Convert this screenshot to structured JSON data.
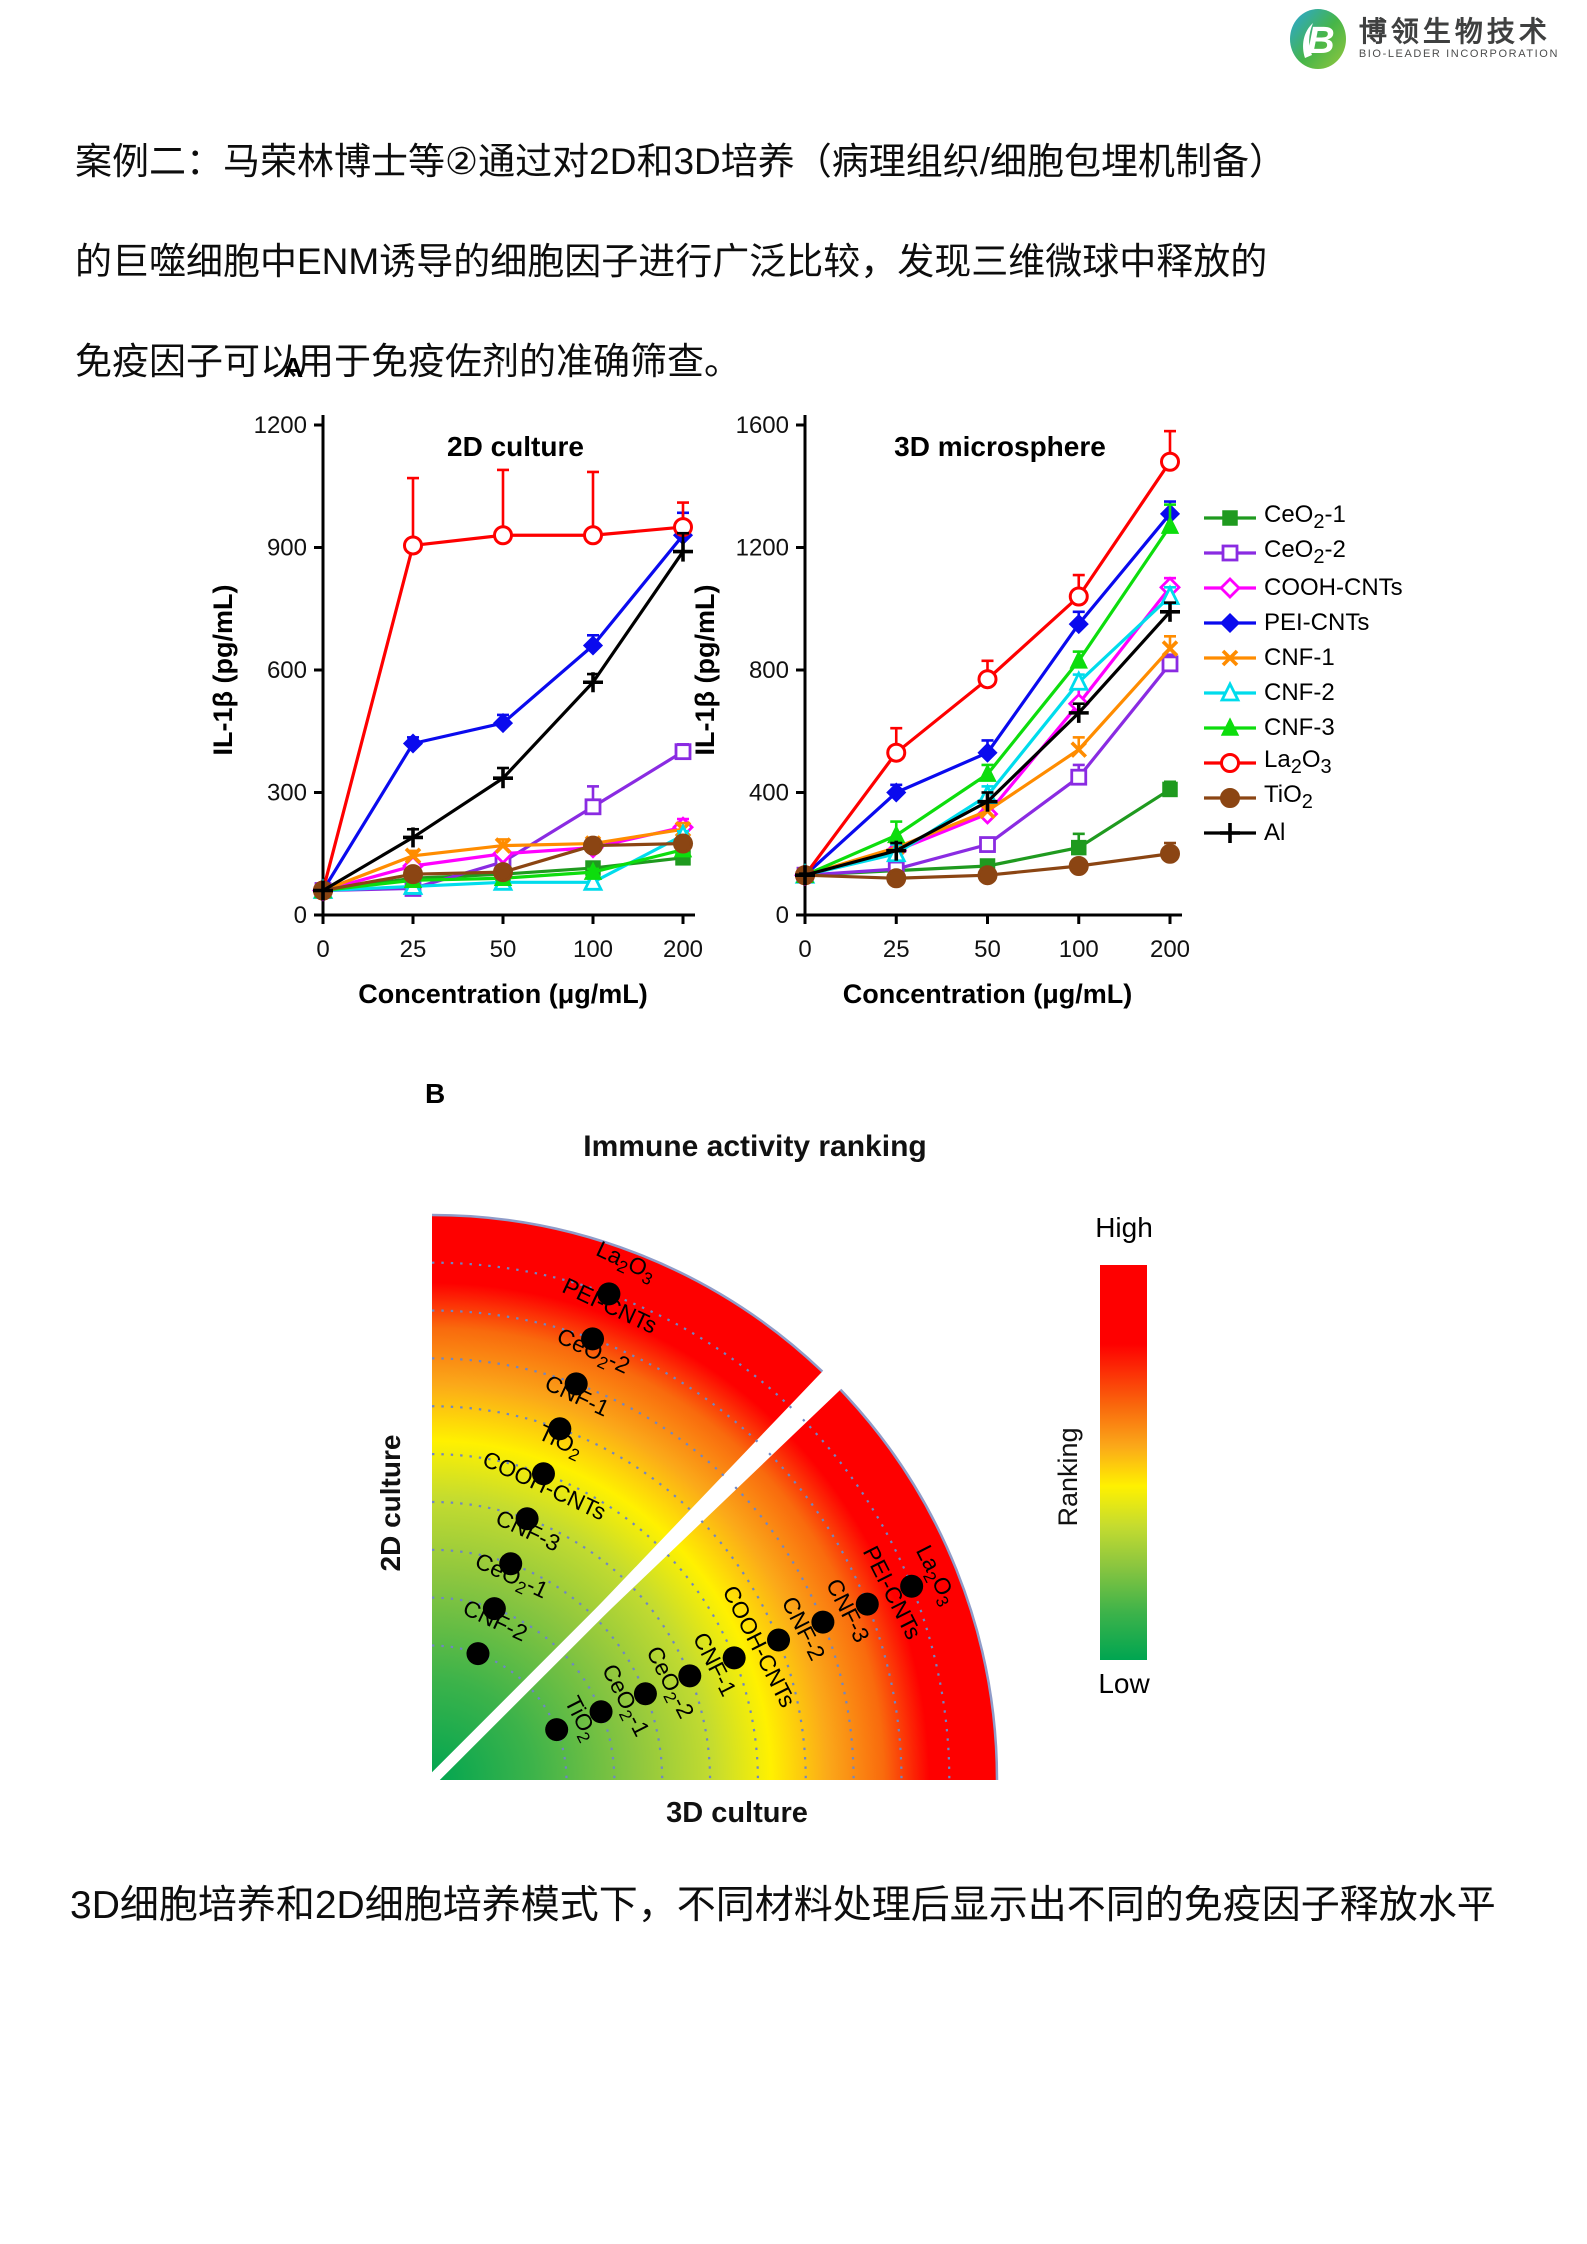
{
  "logo": {
    "name_cn": "博领生物技术",
    "name_en": "BIO-LEADER INCORPORATION",
    "mark_letter": "B",
    "color_blue": "#2aa6db",
    "color_green": "#46b549"
  },
  "intro": {
    "line1": "案例二：马荣林博士等②通过对2D和3D培养（病理组织/细胞包埋机制备）",
    "line2": "的巨噬细胞中ENM诱导的细胞因子进行广泛比较，发现三维微球中释放的",
    "line3": "免疫因子可以用于免疫佐剂的准确筛查。"
  },
  "panel_a_label": "A",
  "panel_b_label": "B",
  "caption_bottom": "3D细胞培养和2D细胞培养模式下，不同材料处理后显示出不同的免疫因子释放水平",
  "chart_data": [
    {
      "type": "line",
      "panel": "A",
      "title": "2D culture",
      "xlabel": "Concentration (μg/mL)",
      "ylabel": "IL-1β (pg/mL)",
      "x_categories": [
        "0",
        "25",
        "50",
        "100",
        "200"
      ],
      "ylim": [
        0,
        1200
      ],
      "yticks": [
        0,
        300,
        600,
        900,
        1200
      ],
      "grid": false,
      "legend_position": "right-of-second-chart",
      "series": [
        {
          "name": "CeO_2_-1",
          "color": "#1f9a1f",
          "marker": "square",
          "filled": true,
          "values": [
            60,
            90,
            100,
            115,
            140
          ],
          "err": [
            0,
            6,
            6,
            8,
            10
          ]
        },
        {
          "name": "CeO_2_-2",
          "color": "#8a2be2",
          "marker": "square",
          "filled": false,
          "values": [
            60,
            65,
            130,
            265,
            400
          ],
          "err": [
            0,
            8,
            12,
            50,
            18
          ]
        },
        {
          "name": "COOH-CNTs",
          "color": "#ff00ff",
          "marker": "diamond",
          "filled": false,
          "values": [
            60,
            120,
            150,
            165,
            215
          ],
          "err": [
            0,
            10,
            10,
            12,
            20
          ]
        },
        {
          "name": "PEI-CNTs",
          "color": "#0a0aee",
          "marker": "diamond",
          "filled": true,
          "values": [
            60,
            420,
            470,
            660,
            930
          ],
          "err": [
            0,
            15,
            20,
            25,
            55
          ]
        },
        {
          "name": "CNF-1",
          "color": "#ff8c00",
          "marker": "x",
          "filled": true,
          "values": [
            60,
            145,
            170,
            175,
            210
          ],
          "err": [
            0,
            12,
            15,
            10,
            15
          ]
        },
        {
          "name": "CNF-2",
          "color": "#00dcec",
          "marker": "triangle",
          "filled": false,
          "values": [
            60,
            70,
            80,
            80,
            195
          ],
          "err": [
            0,
            6,
            6,
            8,
            10
          ]
        },
        {
          "name": "CNF-3",
          "color": "#0ddd0d",
          "marker": "triangle",
          "filled": true,
          "values": [
            60,
            85,
            90,
            105,
            160
          ],
          "err": [
            0,
            6,
            6,
            8,
            10
          ]
        },
        {
          "name": "La_2_O_3",
          "color": "#fe0000",
          "marker": "circle",
          "filled": false,
          "values": [
            60,
            905,
            930,
            930,
            950
          ],
          "err": [
            0,
            165,
            160,
            155,
            60
          ]
        },
        {
          "name": "TiO_2_",
          "color": "#8b4513",
          "marker": "circle",
          "filled": true,
          "values": [
            60,
            100,
            105,
            170,
            175
          ],
          "err": [
            0,
            8,
            8,
            10,
            12
          ]
        },
        {
          "name": "Al",
          "color": "#000000",
          "marker": "plus",
          "filled": true,
          "values": [
            60,
            190,
            335,
            570,
            890
          ],
          "err": [
            0,
            20,
            25,
            20,
            45
          ]
        }
      ]
    },
    {
      "type": "line",
      "panel": "A",
      "title": "3D microsphere",
      "xlabel": "Concentration (μg/mL)",
      "ylabel": "IL-1β (pg/mL)",
      "x_categories": [
        "0",
        "25",
        "50",
        "100",
        "200"
      ],
      "ylim": [
        0,
        1600
      ],
      "yticks": [
        0,
        400,
        800,
        1200,
        1600
      ],
      "grid": false,
      "series": [
        {
          "name": "CeO_2_-1",
          "color": "#1f9a1f",
          "marker": "square",
          "filled": true,
          "values": [
            130,
            145,
            160,
            220,
            410
          ],
          "err": [
            5,
            8,
            10,
            45,
            25
          ]
        },
        {
          "name": "CeO_2_-2",
          "color": "#8a2be2",
          "marker": "square",
          "filled": false,
          "values": [
            130,
            150,
            230,
            450,
            820
          ],
          "err": [
            5,
            10,
            15,
            40,
            30
          ]
        },
        {
          "name": "COOH-CNTs",
          "color": "#ff00ff",
          "marker": "diamond",
          "filled": false,
          "values": [
            130,
            210,
            330,
            690,
            1070
          ],
          "err": [
            5,
            20,
            20,
            60,
            30
          ]
        },
        {
          "name": "PEI-CNTs",
          "color": "#0a0aee",
          "marker": "diamond",
          "filled": true,
          "values": [
            130,
            400,
            530,
            950,
            1310
          ],
          "err": [
            5,
            25,
            40,
            40,
            40
          ]
        },
        {
          "name": "CNF-1",
          "color": "#ff8c00",
          "marker": "x",
          "filled": true,
          "values": [
            130,
            220,
            340,
            540,
            870
          ],
          "err": [
            5,
            15,
            20,
            40,
            40
          ]
        },
        {
          "name": "CNF-2",
          "color": "#00dcec",
          "marker": "triangle",
          "filled": false,
          "values": [
            130,
            200,
            390,
            760,
            1040
          ],
          "err": [
            5,
            30,
            30,
            25,
            30
          ]
        },
        {
          "name": "CNF-3",
          "color": "#0ddd0d",
          "marker": "triangle",
          "filled": true,
          "values": [
            130,
            260,
            460,
            830,
            1270
          ],
          "err": [
            5,
            45,
            30,
            30,
            70
          ]
        },
        {
          "name": "La_2_O_3",
          "color": "#fe0000",
          "marker": "circle",
          "filled": false,
          "values": [
            130,
            530,
            770,
            1040,
            1480
          ],
          "err": [
            10,
            80,
            60,
            70,
            100
          ]
        },
        {
          "name": "TiO_2_",
          "color": "#8b4513",
          "marker": "circle",
          "filled": true,
          "values": [
            130,
            120,
            130,
            160,
            200
          ],
          "err": [
            5,
            8,
            8,
            15,
            35
          ]
        },
        {
          "name": "Al",
          "color": "#000000",
          "marker": "plus",
          "filled": true,
          "values": [
            130,
            210,
            370,
            660,
            990
          ],
          "err": [
            5,
            25,
            30,
            30,
            30
          ]
        }
      ]
    },
    {
      "type": "polar_ranking",
      "panel": "B",
      "title": "Immune activity ranking",
      "sector_labels": {
        "upper": "2D culture",
        "lower": "3D culture"
      },
      "colorbar": {
        "label": "Ranking",
        "top": "High",
        "bottom": "Low"
      },
      "ranking_2d_inner_to_outer": [
        "CNF-2",
        "CeO_2_-1",
        "CNF-3",
        "COOH-CNTs",
        "TiO_2_",
        "CNF-1",
        "CeO_2_-2",
        "PEI-CNTs",
        "La_2_O_3"
      ],
      "ranking_3d_inner_to_outer": [
        "TiO_2_",
        "CeO_2_-1",
        "CeO_2_-2",
        "CNF-1",
        "COOH-CNTs",
        "CNF-2",
        "CNF-3",
        "PEI-CNTs",
        "La_2_O_3"
      ],
      "gradient_low_to_high": [
        "#00A551",
        "#3DB34A",
        "#8CC63F",
        "#C5DC2F",
        "#FFF100",
        "#FBA919",
        "#F96A0D",
        "#FE0000"
      ]
    }
  ]
}
